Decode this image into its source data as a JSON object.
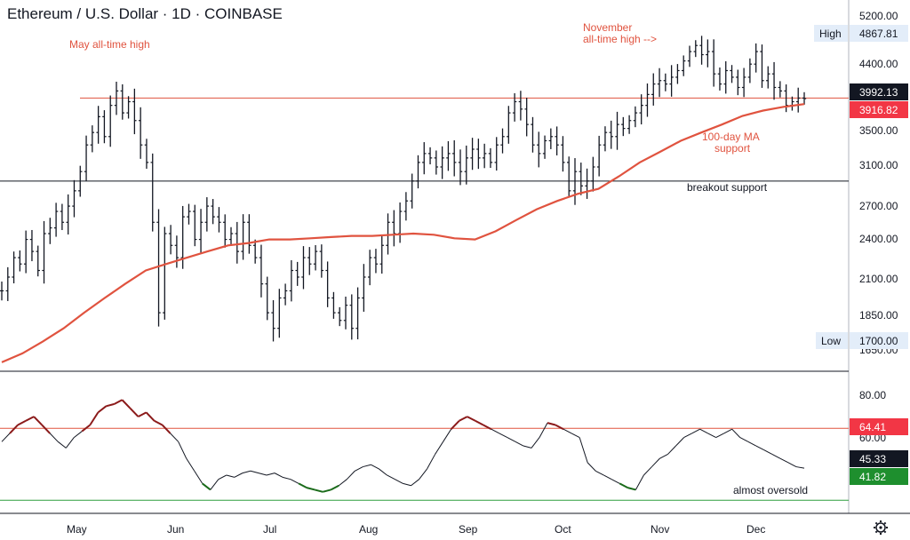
{
  "title": "Ethereum / U.S. Dollar · 1D · COINBASE",
  "colors": {
    "bar": "#131722",
    "ma": "#e0533f",
    "resistance": "#e0533f",
    "support": "#131722",
    "rsi_line": "#131722",
    "rsi_overbought": "#8b1a1a",
    "rsi_oversold": "#1a6b1a",
    "rsi_upper_level": "#e0533f",
    "rsi_lower_level": "#2e9e3e",
    "tag_dark": "#131722",
    "tag_red": "#f23645",
    "tag_green": "#1e8f2e",
    "tag_light": "#e3edf9"
  },
  "chart_data": [
    {
      "type": "ohlc",
      "title": "Ethereum / U.S. Dollar · 1D · COINBASE",
      "x_ticks": [
        "May",
        "Jun",
        "Jul",
        "Aug",
        "Sep",
        "Oct",
        "Nov",
        "Dec"
      ],
      "y_ticks": [
        "5200.00",
        "4400.00",
        "3500.00",
        "3100.00",
        "2700.00",
        "2400.00",
        "2100.00",
        "1850.00",
        "1650.00"
      ],
      "y_scale": "log",
      "ylim": [
        1580,
        5450
      ],
      "closes": [
        2050,
        2150,
        2300,
        2250,
        2450,
        2350,
        2200,
        2500,
        2550,
        2700,
        2600,
        2750,
        2900,
        3100,
        3400,
        3550,
        3750,
        3500,
        3900,
        4100,
        3800,
        3950,
        3700,
        3400,
        3200,
        2600,
        1900,
        2500,
        2400,
        2300,
        2650,
        2700,
        2450,
        2600,
        2750,
        2650,
        2600,
        2450,
        2500,
        2350,
        2600,
        2400,
        2300,
        2100,
        1900,
        1800,
        2000,
        2050,
        2200,
        2150,
        2300,
        2250,
        2350,
        2200,
        2000,
        1900,
        1850,
        1950,
        1800,
        2000,
        2150,
        2300,
        2250,
        2400,
        2600,
        2500,
        2700,
        2800,
        3000,
        3200,
        3300,
        3250,
        3150,
        3250,
        3300,
        3200,
        3100,
        3250,
        3350,
        3250,
        3300,
        3200,
        3400,
        3500,
        3800,
        3950,
        3850,
        3650,
        3400,
        3300,
        3450,
        3500,
        3400,
        3200,
        2900,
        3100,
        2950,
        3000,
        3150,
        3400,
        3550,
        3500,
        3650,
        3600,
        3700,
        3800,
        3900,
        4050,
        4200,
        4250,
        4200,
        4300,
        4400,
        4550,
        4700,
        4800,
        4650,
        4700,
        4350,
        4200,
        4400,
        4300,
        4150,
        4300,
        4500,
        4700,
        4250,
        4350,
        4150,
        4100,
        3900,
        3950,
        4000,
        3992.13
      ],
      "ma_100_day": [
        1600,
        1650,
        1720,
        1800,
        1900,
        2000,
        2100,
        2200,
        2250,
        2300,
        2350,
        2400,
        2420,
        2450,
        2450,
        2460,
        2470,
        2480,
        2480,
        2490,
        2500,
        2490,
        2460,
        2450,
        2520,
        2620,
        2720,
        2800,
        2870,
        2920,
        3050,
        3200,
        3320,
        3450,
        3550,
        3650,
        3760,
        3830,
        3880,
        3916.82
      ],
      "resistance": 4000,
      "support": 3000,
      "high": "4867.81",
      "low": "1700.00",
      "last_price": "3992.13",
      "ma_value": "3916.82"
    },
    {
      "type": "line",
      "name": "RSI",
      "y_ticks": [
        "80.00",
        "60.00"
      ],
      "ylim": [
        25,
        90
      ],
      "upper_level": 64.41,
      "lower_level": 30,
      "values": [
        58,
        62,
        66,
        68,
        70,
        66,
        62,
        58,
        55,
        60,
        63,
        66,
        72,
        75,
        76,
        78,
        74,
        70,
        72,
        68,
        66,
        62,
        58,
        50,
        44,
        38,
        35,
        40,
        42,
        41,
        43,
        44,
        43,
        42,
        43,
        41,
        40,
        38,
        36,
        35,
        34,
        35,
        37,
        40,
        44,
        46,
        47,
        45,
        42,
        40,
        38,
        37,
        40,
        45,
        52,
        58,
        64,
        68,
        70,
        68,
        66,
        64,
        62,
        60,
        58,
        56,
        55,
        60,
        67,
        66,
        64,
        62,
        60,
        48,
        44,
        42,
        40,
        38,
        36,
        35,
        42,
        46,
        50,
        52,
        56,
        60,
        62,
        64,
        62,
        60,
        62,
        64,
        60,
        58,
        56,
        54,
        52,
        50,
        48,
        46,
        45.33
      ],
      "last_value": "45.33",
      "lower_value": "41.82",
      "upper_value": "64.41"
    }
  ],
  "annotations": {
    "may_ath": "May all-time high",
    "november_ath_line1": "November",
    "november_ath_line2": "all-time high -->",
    "ma_support_line1": "100-day MA",
    "ma_support_line2": "support",
    "breakout": "breakout support",
    "oversold": "almost oversold"
  },
  "price_tags": {
    "high_label": "High",
    "high_value": "4867.81",
    "low_label": "Low",
    "low_value": "1700.00",
    "last_value": "3992.13",
    "ma_value": "3916.82"
  },
  "rsi_tags": {
    "upper_value": "64.41",
    "last_value": "45.33",
    "lower_value": "41.82"
  },
  "settings_icon": "gear-icon"
}
